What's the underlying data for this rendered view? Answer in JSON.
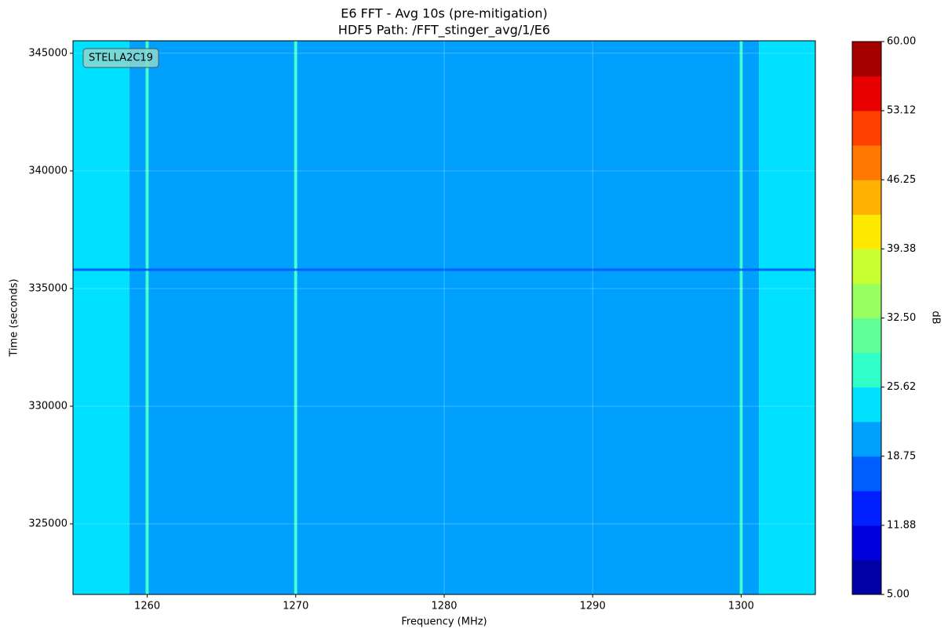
{
  "chart_data": {
    "type": "heatmap",
    "title": "E6 FFT - Avg 10s (pre-mitigation)",
    "subtitle": "HDF5 Path: /FFT_stinger_avg/1/E6",
    "x_label": "Frequency (MHz)",
    "y_label": "Time (seconds)",
    "annotation": "STELLA2C19",
    "x_edges": [
      1255,
      1258.8,
      1259.9,
      1260.1,
      1269.9,
      1270.1,
      1299.9,
      1300.1,
      1301.2,
      1305
    ],
    "values": [
      24,
      21,
      27,
      21,
      28,
      21,
      27,
      21,
      24
    ],
    "horizontal_band": {
      "y": [
        335750,
        335850
      ],
      "value": 17
    },
    "xlim": [
      1255,
      1305
    ],
    "ylim": [
      322000,
      345530
    ],
    "xticks": [
      1260,
      1270,
      1280,
      1290,
      1300
    ],
    "yticks": [
      325000,
      330000,
      335000,
      340000,
      345000
    ],
    "grid": true,
    "colorbar": {
      "label": "dB",
      "lim": [
        5,
        60
      ],
      "levels": [
        5,
        8.4375,
        11.875,
        15.3125,
        18.75,
        22.1875,
        25.625,
        29.0625,
        32.5,
        35.9375,
        39.375,
        42.8125,
        46.25,
        49.6875,
        53.125,
        56.5625,
        60
      ],
      "colors": [
        "#0000a4",
        "#0000dc",
        "#0020ff",
        "#0060ff",
        "#00a0ff",
        "#00e0ff",
        "#30ffc8",
        "#60ff98",
        "#98ff60",
        "#c8ff30",
        "#ffe800",
        "#ffb000",
        "#ff7800",
        "#ff4000",
        "#e80000",
        "#a40000"
      ],
      "ticks": [
        {
          "value": 5,
          "label": "5.00"
        },
        {
          "value": 11.875,
          "label": "11.88"
        },
        {
          "value": 18.75,
          "label": "18.75"
        },
        {
          "value": 25.625,
          "label": "25.62"
        },
        {
          "value": 32.5,
          "label": "32.50"
        },
        {
          "value": 39.375,
          "label": "39.38"
        },
        {
          "value": 46.25,
          "label": "46.25"
        },
        {
          "value": 53.125,
          "label": "53.12"
        },
        {
          "value": 60,
          "label": "60.00"
        }
      ]
    }
  }
}
